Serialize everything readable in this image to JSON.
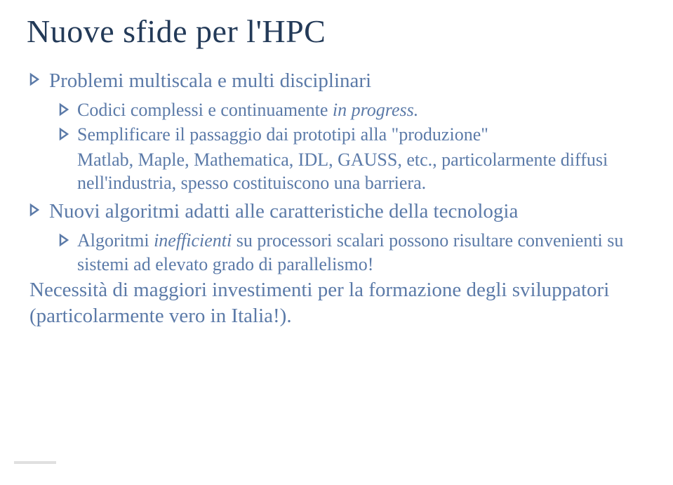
{
  "accent_color": "#5b7aa8",
  "title_color": "#233a58",
  "text_color": "#000000",
  "title": "Nuove sfide per l'HPC",
  "items": [
    {
      "level": 1,
      "segments": [
        {
          "text": "Problemi multiscala e multi disciplinari",
          "italic": false
        }
      ]
    },
    {
      "level": 2,
      "segments": [
        {
          "text": "Codici complessi e continuamente ",
          "italic": false
        },
        {
          "text": "in progress.",
          "italic": true
        }
      ]
    },
    {
      "level": 2,
      "segments": [
        {
          "text": "Semplificare il passaggio dai prototipi alla \"produzione\"",
          "italic": false
        }
      ]
    },
    {
      "level": 1,
      "no_bullet": true,
      "indent_like": 2,
      "segments": [
        {
          "text": "Matlab, Maple, Mathematica, IDL, GAUSS, etc., particolarmente diffusi nell'industria, spesso costituiscono una barriera.",
          "italic": false
        }
      ]
    },
    {
      "level": 1,
      "segments": [
        {
          "text": "Nuovi algoritmi adatti alle caratteristiche della tecnologia",
          "italic": false
        }
      ]
    },
    {
      "level": 2,
      "segments": [
        {
          "text": "Algoritmi ",
          "italic": false
        },
        {
          "text": "inefficienti",
          "italic": true
        },
        {
          "text": " su processori scalari possono risultare convenienti su sistemi ad elevato grado di parallelismo!",
          "italic": false
        }
      ]
    },
    {
      "level": 1,
      "no_bullet": true,
      "segments": [
        {
          "text": "Necessità di maggiori investimenti per la formazione degli sviluppatori (particolarmente vero in Italia!).",
          "italic": false
        }
      ]
    }
  ]
}
